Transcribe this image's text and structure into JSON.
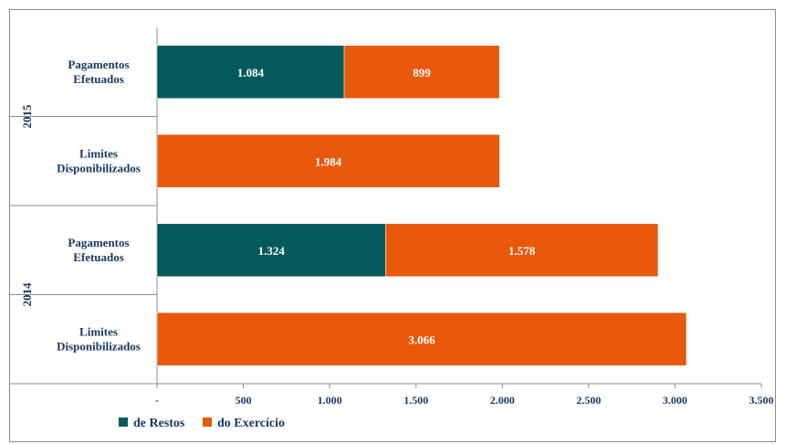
{
  "chart_data": {
    "type": "bar",
    "orientation": "horizontal",
    "stacked": true,
    "groups": [
      {
        "year": "2015",
        "categories": [
          {
            "label_lines": [
              "Pagamentos",
              "Efetuados"
            ],
            "values": {
              "de Restos": 1084,
              "do Exercício": 899
            },
            "labels": {
              "de Restos": "1.084",
              "do Exercício": "899"
            }
          },
          {
            "label_lines": [
              "Limites",
              "Disponibilizados"
            ],
            "values": {
              "de Restos": 0,
              "do Exercício": 1984
            },
            "labels": {
              "de Restos": "",
              "do Exercício": "1.984"
            }
          }
        ]
      },
      {
        "year": "2014",
        "categories": [
          {
            "label_lines": [
              "Pagamentos",
              "Efetuados"
            ],
            "values": {
              "de Restos": 1324,
              "do Exercício": 1578
            },
            "labels": {
              "de Restos": "1.324",
              "do Exercício": "1.578"
            }
          },
          {
            "label_lines": [
              "Limites",
              "Disponibilizados"
            ],
            "values": {
              "de Restos": 0,
              "do Exercício": 3066
            },
            "labels": {
              "de Restos": "",
              "do Exercício": "3.066"
            }
          }
        ]
      }
    ],
    "series": [
      {
        "name": "de Restos",
        "color": "#045a5a"
      },
      {
        "name": "do Exercício",
        "color": "#e8590c"
      }
    ],
    "xlim": [
      0,
      3500
    ],
    "xticks": [
      0,
      500,
      1000,
      1500,
      2000,
      2500,
      3000,
      3500
    ],
    "xtick_labels": [
      "-",
      "500",
      "1.000",
      "1.500",
      "2.000",
      "2.500",
      "3.000",
      "3.500"
    ],
    "legend_position": "bottom-left",
    "grid": false
  }
}
